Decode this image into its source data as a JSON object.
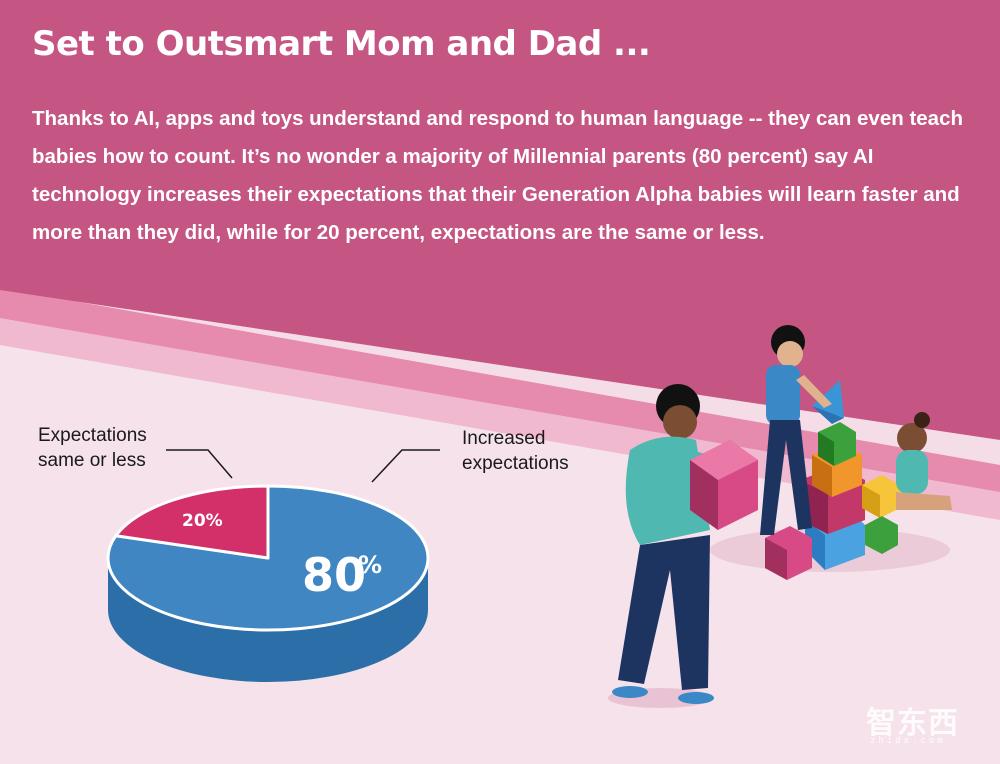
{
  "header": {
    "title": "Set to Outsmart Mom and Dad ...",
    "intro": "Thanks to AI, apps and toys understand and respond to human language -- they can even teach babies how to count.  It’s no wonder a majority of Millennial parents (80 percent) say AI technology increases their expectations that their Generation Alpha babies will learn faster and more than they did, while for 20 percent, expectations are the same or less."
  },
  "colors": {
    "header_bg": "#c55683",
    "band_light": "#e68aae",
    "band_lighter": "#f0b9cf",
    "page_bg": "#f5dde7",
    "increased": "#3f86c3",
    "increased_side": "#2b6ea8",
    "same_or_less": "#d3306a",
    "same_or_less_side": "#a92556"
  },
  "chart_data": {
    "type": "pie",
    "style": "3d",
    "title": "",
    "slices": [
      {
        "label_lines": [
          "Increased",
          "expectations"
        ],
        "value": 80,
        "display": "80",
        "color": "#3f86c3"
      },
      {
        "label_lines": [
          "Expectations",
          "same or less"
        ],
        "value": 20,
        "display": "20%",
        "color": "#d3306a"
      }
    ],
    "percent_sign": "%"
  },
  "watermark": {
    "text": "智东西",
    "sub": "zhidx.com"
  }
}
